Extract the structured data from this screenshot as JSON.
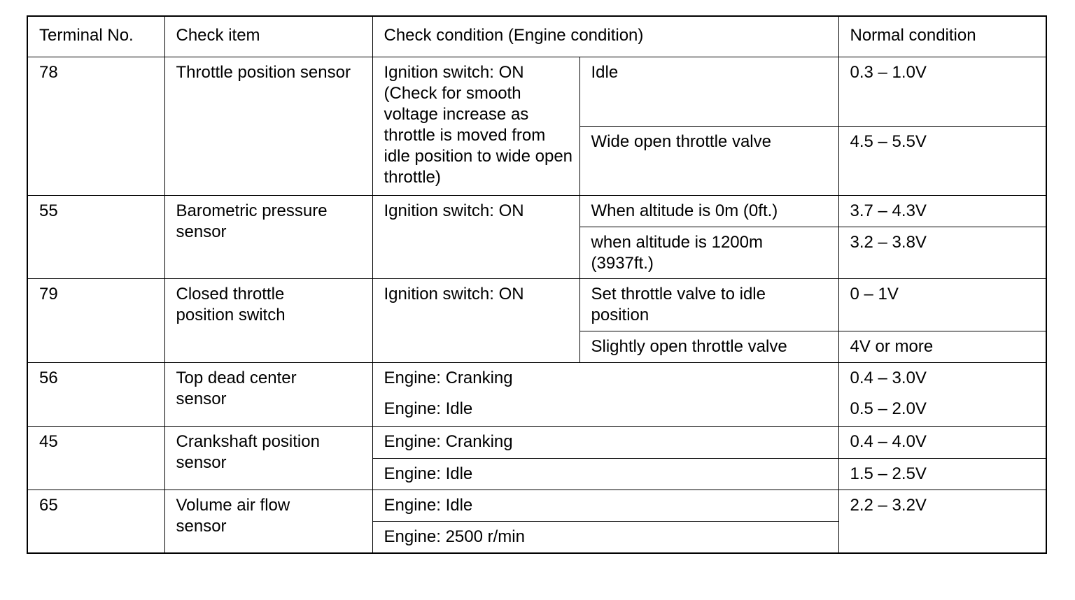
{
  "headers": [
    "Terminal No.",
    "Check item",
    "Check condition (Engine condition)",
    "Normal condition"
  ],
  "rows": [
    {
      "terminal": "78",
      "item": "Throttle position sensor",
      "condition": "Ignition switch: ON (Check for smooth voltage increase as throttle is moved from idle position to wide open throttle)",
      "sub": [
        {
          "cond": "Idle",
          "normal": "0.3 – 1.0V"
        },
        {
          "cond": "Wide open throttle valve",
          "normal": "4.5 – 5.5V"
        }
      ]
    },
    {
      "terminal": "55",
      "item": "Barometric pressure sensor",
      "condition": "Ignition switch: ON",
      "sub": [
        {
          "cond": "When altitude is 0m (0ft.)",
          "normal": "3.7 – 4.3V"
        },
        {
          "cond": "when altitude is 1200m (3937ft.)",
          "normal": "3.2 – 3.8V"
        }
      ]
    },
    {
      "terminal": "79",
      "item": "Closed throttle position switch",
      "condition": "Ignition switch: ON",
      "sub": [
        {
          "cond": "Set throttle valve to idle position",
          "normal": "0 – 1V"
        },
        {
          "cond": "Slightly open throttle valve",
          "normal": "4V or more"
        }
      ]
    },
    {
      "terminal": "56",
      "item": "Top dead center sensor",
      "sub": [
        {
          "cond": "Engine: Cranking",
          "normal": "0.4 – 3.0V"
        },
        {
          "cond": "Engine: Idle",
          "normal": "0.5 – 2.0V"
        }
      ]
    },
    {
      "terminal": "45",
      "item": "Crankshaft position sensor",
      "sub": [
        {
          "cond": "Engine: Cranking",
          "normal": "0.4 – 4.0V"
        },
        {
          "cond": "Engine: Idle",
          "normal": "1.5 – 2.5V"
        }
      ]
    },
    {
      "terminal": "65",
      "item": "Volume air flow sensor",
      "normal": "2.2 – 3.2V",
      "sub": [
        {
          "cond": "Engine: Idle"
        },
        {
          "cond": "Engine: 2500 r/min"
        }
      ]
    }
  ]
}
